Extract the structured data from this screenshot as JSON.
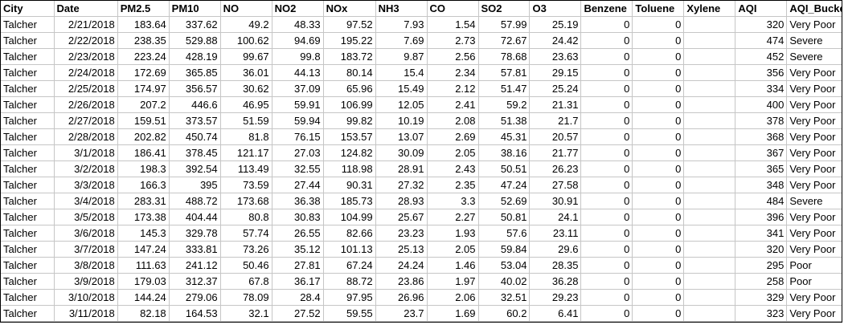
{
  "sheet": {
    "columns": [
      {
        "key": "city",
        "label": "City",
        "align": "left"
      },
      {
        "key": "date",
        "label": "Date",
        "align": "right"
      },
      {
        "key": "pm25",
        "label": "PM2.5",
        "align": "right"
      },
      {
        "key": "pm10",
        "label": "PM10",
        "align": "right"
      },
      {
        "key": "no",
        "label": "NO",
        "align": "right"
      },
      {
        "key": "no2",
        "label": "NO2",
        "align": "right"
      },
      {
        "key": "nox",
        "label": "NOx",
        "align": "right"
      },
      {
        "key": "nh3",
        "label": "NH3",
        "align": "right"
      },
      {
        "key": "co",
        "label": "CO",
        "align": "right"
      },
      {
        "key": "so2",
        "label": "SO2",
        "align": "right"
      },
      {
        "key": "o3",
        "label": "O3",
        "align": "right"
      },
      {
        "key": "benzene",
        "label": "Benzene",
        "align": "right"
      },
      {
        "key": "toluene",
        "label": "Toluene",
        "align": "right"
      },
      {
        "key": "xylene",
        "label": "Xylene",
        "align": "right"
      },
      {
        "key": "aqi",
        "label": "AQI",
        "align": "right"
      },
      {
        "key": "aqi_bucket",
        "label": "AQI_Bucket",
        "align": "left"
      }
    ],
    "rows": [
      [
        "Talcher",
        "2/21/2018",
        "183.64",
        "337.62",
        "49.2",
        "48.33",
        "97.52",
        "7.93",
        "1.54",
        "57.99",
        "25.19",
        "0",
        "0",
        "",
        "320",
        "Very Poor"
      ],
      [
        "Talcher",
        "2/22/2018",
        "238.35",
        "529.88",
        "100.62",
        "94.69",
        "195.22",
        "7.69",
        "2.73",
        "72.67",
        "24.42",
        "0",
        "0",
        "",
        "474",
        "Severe"
      ],
      [
        "Talcher",
        "2/23/2018",
        "223.24",
        "428.19",
        "99.67",
        "99.8",
        "183.72",
        "9.87",
        "2.56",
        "78.68",
        "23.63",
        "0",
        "0",
        "",
        "452",
        "Severe"
      ],
      [
        "Talcher",
        "2/24/2018",
        "172.69",
        "365.85",
        "36.01",
        "44.13",
        "80.14",
        "15.4",
        "2.34",
        "57.81",
        "29.15",
        "0",
        "0",
        "",
        "356",
        "Very Poor"
      ],
      [
        "Talcher",
        "2/25/2018",
        "174.97",
        "356.57",
        "30.62",
        "37.09",
        "65.96",
        "15.49",
        "2.12",
        "51.47",
        "25.24",
        "0",
        "0",
        "",
        "334",
        "Very Poor"
      ],
      [
        "Talcher",
        "2/26/2018",
        "207.2",
        "446.6",
        "46.95",
        "59.91",
        "106.99",
        "12.05",
        "2.41",
        "59.2",
        "21.31",
        "0",
        "0",
        "",
        "400",
        "Very Poor"
      ],
      [
        "Talcher",
        "2/27/2018",
        "159.51",
        "373.57",
        "51.59",
        "59.94",
        "99.82",
        "10.19",
        "2.08",
        "51.38",
        "21.7",
        "0",
        "0",
        "",
        "378",
        "Very Poor"
      ],
      [
        "Talcher",
        "2/28/2018",
        "202.82",
        "450.74",
        "81.8",
        "76.15",
        "153.57",
        "13.07",
        "2.69",
        "45.31",
        "20.57",
        "0",
        "0",
        "",
        "368",
        "Very Poor"
      ],
      [
        "Talcher",
        "3/1/2018",
        "186.41",
        "378.45",
        "121.17",
        "27.03",
        "124.82",
        "30.09",
        "2.05",
        "38.16",
        "21.77",
        "0",
        "0",
        "",
        "367",
        "Very Poor"
      ],
      [
        "Talcher",
        "3/2/2018",
        "198.3",
        "392.54",
        "113.49",
        "32.55",
        "118.98",
        "28.91",
        "2.43",
        "50.51",
        "26.23",
        "0",
        "0",
        "",
        "365",
        "Very Poor"
      ],
      [
        "Talcher",
        "3/3/2018",
        "166.3",
        "395",
        "73.59",
        "27.44",
        "90.31",
        "27.32",
        "2.35",
        "47.24",
        "27.58",
        "0",
        "0",
        "",
        "348",
        "Very Poor"
      ],
      [
        "Talcher",
        "3/4/2018",
        "283.31",
        "488.72",
        "173.68",
        "36.38",
        "185.73",
        "28.93",
        "3.3",
        "52.69",
        "30.91",
        "0",
        "0",
        "",
        "484",
        "Severe"
      ],
      [
        "Talcher",
        "3/5/2018",
        "173.38",
        "404.44",
        "80.8",
        "30.83",
        "104.99",
        "25.67",
        "2.27",
        "50.81",
        "24.1",
        "0",
        "0",
        "",
        "396",
        "Very Poor"
      ],
      [
        "Talcher",
        "3/6/2018",
        "145.3",
        "329.78",
        "57.74",
        "26.55",
        "82.66",
        "23.23",
        "1.93",
        "57.6",
        "23.11",
        "0",
        "0",
        "",
        "341",
        "Very Poor"
      ],
      [
        "Talcher",
        "3/7/2018",
        "147.24",
        "333.81",
        "73.26",
        "35.12",
        "101.13",
        "25.13",
        "2.05",
        "59.84",
        "29.6",
        "0",
        "0",
        "",
        "320",
        "Very Poor"
      ],
      [
        "Talcher",
        "3/8/2018",
        "111.63",
        "241.12",
        "50.46",
        "27.81",
        "67.24",
        "24.24",
        "1.46",
        "53.04",
        "28.35",
        "0",
        "0",
        "",
        "295",
        "Poor"
      ],
      [
        "Talcher",
        "3/9/2018",
        "179.03",
        "312.37",
        "67.8",
        "36.17",
        "88.72",
        "23.86",
        "1.97",
        "40.02",
        "36.28",
        "0",
        "0",
        "",
        "258",
        "Poor"
      ],
      [
        "Talcher",
        "3/10/2018",
        "144.24",
        "279.06",
        "78.09",
        "28.4",
        "97.95",
        "26.96",
        "2.06",
        "32.51",
        "29.23",
        "0",
        "0",
        "",
        "329",
        "Very Poor"
      ],
      [
        "Talcher",
        "3/11/2018",
        "82.18",
        "164.53",
        "32.1",
        "27.52",
        "59.55",
        "23.7",
        "1.69",
        "60.2",
        "6.41",
        "0",
        "0",
        "",
        "323",
        "Very Poor"
      ]
    ]
  }
}
